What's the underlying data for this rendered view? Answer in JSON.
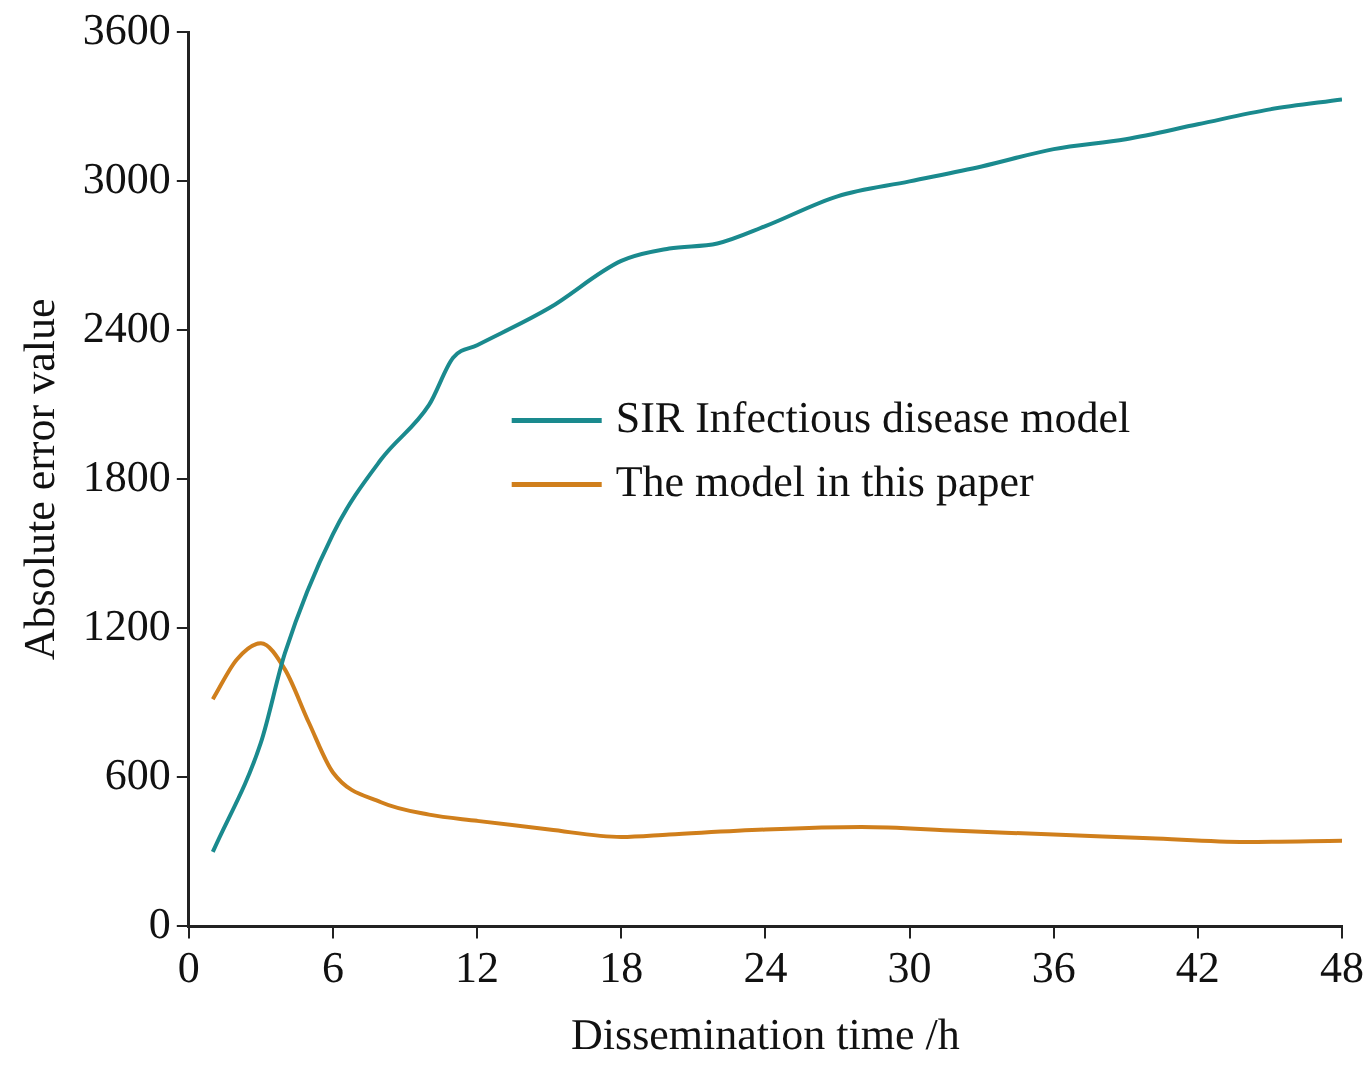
{
  "chart_data": {
    "type": "line",
    "xlabel": "Dissemination time /h",
    "ylabel": "Absolute error value",
    "xlim": [
      0,
      48
    ],
    "xticks": [
      0,
      6,
      12,
      18,
      24,
      30,
      36,
      42,
      48
    ],
    "ylim": [
      0,
      3600
    ],
    "yticks": [
      0,
      600,
      1200,
      1800,
      2400,
      3000,
      3600
    ],
    "grid": false,
    "legend": "right",
    "marker": "none",
    "line_style": "solid",
    "series": [
      {
        "name": "SIR Infectious disease model",
        "color": "#1a8a8e",
        "x": [
          1,
          3,
          4,
          6,
          8,
          10,
          11,
          12,
          15,
          18,
          20,
          22,
          24,
          27,
          30,
          33,
          36,
          39,
          42,
          45,
          48
        ],
        "values": [
          300,
          740,
          1100,
          1580,
          1880,
          2100,
          2290,
          2340,
          2490,
          2680,
          2730,
          2750,
          2820,
          2940,
          3000,
          3060,
          3130,
          3170,
          3230,
          3290,
          3330
        ]
      },
      {
        "name": "The model in this paper",
        "color": "#d07f1c",
        "x": [
          1,
          2,
          3,
          4,
          5,
          6,
          8,
          10,
          12,
          15,
          18,
          20,
          24,
          28,
          32,
          36,
          40,
          44,
          48
        ],
        "values": [
          915,
          1075,
          1140,
          1035,
          820,
          620,
          500,
          450,
          425,
          390,
          360,
          370,
          390,
          400,
          385,
          370,
          355,
          340,
          345
        ]
      }
    ]
  }
}
